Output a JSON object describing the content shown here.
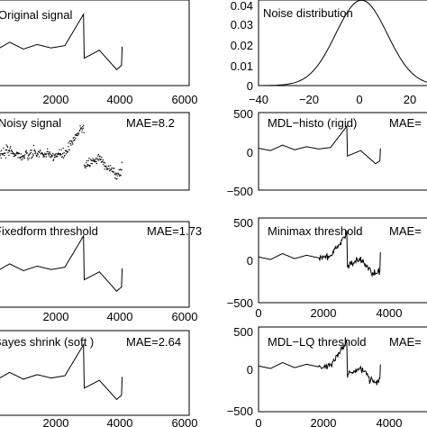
{
  "chart_data": [
    {
      "type": "line",
      "title": "Original signal",
      "annotation": "",
      "xlim": [
        0,
        6000
      ],
      "ylim": [
        -500,
        500
      ],
      "xticks": [
        "2000",
        "4000",
        "6000"
      ],
      "yticks": [],
      "series": [
        {
          "style": "clean",
          "x": [
            0,
            400,
            800,
            1200,
            1600,
            2000,
            2400,
            2950,
            2960,
            3400,
            3900,
            4050,
            4060
          ],
          "y": [
            40,
            10,
            80,
            20,
            60,
            30,
            50,
            330,
            -60,
            10,
            -160,
            -120,
            40
          ]
        }
      ]
    },
    {
      "type": "line",
      "title": "Noise distribution",
      "annotation": "",
      "xlim": [
        -40,
        30
      ],
      "ylim": [
        0,
        0.04
      ],
      "xticks": [
        "−40",
        "−20",
        "0",
        "20"
      ],
      "yticks": [
        "0",
        "0.01",
        "0.02",
        "0.03",
        "0.04"
      ],
      "series": [
        {
          "style": "gaussian",
          "mean": 0,
          "sigma": 10
        }
      ]
    },
    {
      "type": "scatter",
      "title": "Noisy signal",
      "annotation": "MAE=8.2",
      "xlim": [
        0,
        6000
      ],
      "ylim": [
        -500,
        500
      ],
      "xticks": [],
      "yticks": [],
      "series": [
        {
          "style": "noisy",
          "x": [
            0,
            400,
            800,
            1200,
            1600,
            2000,
            2400,
            2950,
            2960,
            3400,
            3900,
            4050,
            4060
          ],
          "y": [
            40,
            10,
            80,
            20,
            60,
            30,
            50,
            330,
            -60,
            10,
            -160,
            -120,
            40
          ]
        }
      ]
    },
    {
      "type": "line",
      "title": "MDL−histo (rigid)",
      "annotation": "MAE=",
      "xlim": [
        0,
        6000
      ],
      "ylim": [
        -500,
        500
      ],
      "xticks": [],
      "yticks": [
        "500",
        "0",
        "−500"
      ],
      "series": [
        {
          "style": "clean",
          "x": [
            0,
            400,
            800,
            1200,
            1600,
            2000,
            2400,
            2950,
            2960,
            3400,
            3900,
            4050,
            4060
          ],
          "y": [
            40,
            10,
            80,
            20,
            60,
            30,
            50,
            330,
            -60,
            10,
            -160,
            -120,
            40
          ]
        }
      ]
    },
    {
      "type": "line",
      "title": "Fixedform threshold",
      "annotation": "MAE=1.73",
      "xlim": [
        0,
        6000
      ],
      "ylim": [
        -500,
        500
      ],
      "xticks": [
        "2000",
        "4000",
        "6000"
      ],
      "yticks": [],
      "series": [
        {
          "style": "clean",
          "x": [
            0,
            400,
            800,
            1200,
            1600,
            2000,
            2400,
            2950,
            2960,
            3400,
            3900,
            4050,
            4060
          ],
          "y": [
            40,
            10,
            80,
            20,
            60,
            30,
            50,
            330,
            -60,
            10,
            -160,
            -120,
            40
          ]
        }
      ]
    },
    {
      "type": "line",
      "title": "Minimax threshold",
      "annotation": "MAE=",
      "xlim": [
        0,
        6000
      ],
      "ylim": [
        -500,
        500
      ],
      "xticks": [
        "0",
        "2000",
        "4000"
      ],
      "yticks": [
        "500",
        "0",
        "−500"
      ],
      "series": [
        {
          "style": "jitter",
          "x": [
            0,
            400,
            800,
            1200,
            1600,
            2000,
            2400,
            2950,
            2960,
            3400,
            3900,
            4050,
            4060
          ],
          "y": [
            40,
            10,
            80,
            20,
            60,
            30,
            50,
            330,
            -60,
            10,
            -160,
            -120,
            40
          ]
        }
      ]
    },
    {
      "type": "line",
      "title": "Bayes shrink (soft )",
      "annotation": "MAE=2.64",
      "xlim": [
        0,
        6000
      ],
      "ylim": [
        -500,
        500
      ],
      "xticks": [
        "2000",
        "4000",
        "6000"
      ],
      "yticks": [],
      "series": [
        {
          "style": "clean",
          "x": [
            0,
            400,
            800,
            1200,
            1600,
            2000,
            2400,
            2950,
            2960,
            3400,
            3900,
            4050,
            4060
          ],
          "y": [
            40,
            10,
            80,
            20,
            60,
            30,
            50,
            330,
            -60,
            10,
            -160,
            -120,
            40
          ]
        }
      ]
    },
    {
      "type": "line",
      "title": "MDL−LQ threshold",
      "annotation": "MAE=",
      "xlim": [
        0,
        6000
      ],
      "ylim": [
        -500,
        500
      ],
      "xticks": [
        "0",
        "2000",
        "4000"
      ],
      "yticks": [
        "500",
        "0",
        "−500"
      ],
      "series": [
        {
          "style": "jitter",
          "x": [
            0,
            400,
            800,
            1200,
            1600,
            2000,
            2400,
            2950,
            2960,
            3400,
            3900,
            4050,
            4060
          ],
          "y": [
            40,
            10,
            80,
            20,
            60,
            30,
            50,
            330,
            -60,
            10,
            -160,
            -120,
            40
          ]
        }
      ]
    }
  ]
}
